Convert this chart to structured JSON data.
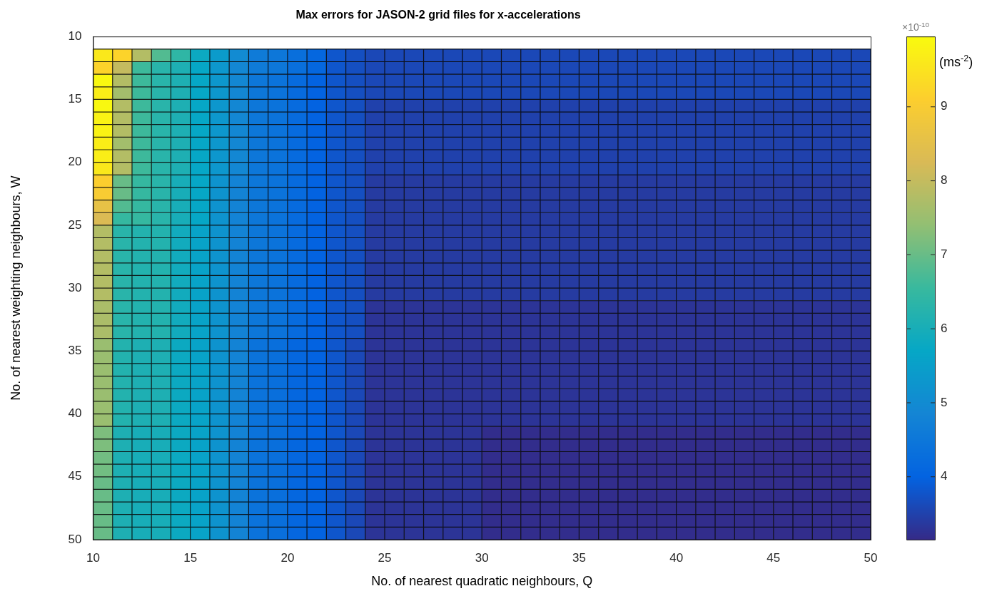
{
  "chart_data": {
    "type": "heatmap",
    "title": "Max errors for JASON-2 grid files for x-accelerations",
    "xlabel": "No. of nearest quadratic neighbours, Q",
    "ylabel": "No. of nearest weighting neighbours, W",
    "clabel": "(ms$^{-2}$)",
    "annotations": [
      "×10$^{-10}$"
    ],
    "x": [
      10.5,
      11.5,
      12.5,
      13.5,
      14.5,
      15.5,
      16.5,
      17.5,
      18.5,
      19.5,
      20.5,
      21.5,
      22.5,
      23.5,
      24.5,
      25.5,
      26.5,
      27.5,
      28.5,
      29.5,
      30.5,
      31.5,
      32.5,
      33.5,
      34.5,
      35.5,
      36.5,
      37.5,
      38.5,
      39.5,
      40.5,
      41.5,
      42.5,
      43.5,
      44.5,
      45.5,
      46.5,
      47.5,
      48.5,
      49.5
    ],
    "y": [
      11.5,
      12.5,
      13.5,
      14.5,
      15.5,
      16.5,
      17.5,
      18.5,
      19.5,
      20.5,
      21.5,
      22.5,
      23.5,
      24.5,
      25.5,
      26.5,
      27.5,
      28.5,
      29.5,
      30.5,
      31.5,
      32.5,
      33.5,
      34.5,
      35.5,
      36.5,
      37.5,
      38.5,
      39.5,
      40.5,
      41.5,
      42.5,
      43.5,
      44.5,
      45.5,
      46.5,
      47.5,
      48.5,
      49.5
    ],
    "grid": true,
    "xlim": [
      10,
      50
    ],
    "xticks": [
      10,
      15,
      20,
      25,
      30,
      35,
      40,
      45,
      50
    ],
    "ylim": [
      50,
      10
    ],
    "yticks": [
      10,
      15,
      20,
      25,
      30,
      35,
      40,
      45,
      50
    ],
    "clim": [
      3.15,
      9.95
    ],
    "cticks": [
      4,
      5,
      6,
      7,
      8,
      9
    ],
    "cells": [
      [
        9.6,
        9.2,
        7.8,
        6.8,
        6.4,
        5.8,
        5.4,
        5.0,
        4.6,
        4.5,
        4.3,
        4.1,
        3.8,
        3.7,
        3.6,
        3.6,
        3.6,
        3.6,
        3.6,
        3.6,
        3.6,
        3.6,
        3.6,
        3.6,
        3.6,
        3.6,
        3.6,
        3.6,
        3.6,
        3.6,
        3.6,
        3.6,
        3.6,
        3.6,
        3.6,
        3.6,
        3.6,
        3.6,
        3.6,
        3.6
      ],
      [
        9.2,
        8.0,
        6.6,
        6.3,
        6.1,
        5.7,
        5.3,
        4.9,
        4.6,
        4.5,
        4.3,
        4.1,
        3.8,
        3.7,
        3.6,
        3.6,
        3.6,
        3.6,
        3.6,
        3.6,
        3.6,
        3.6,
        3.6,
        3.6,
        3.6,
        3.6,
        3.6,
        3.6,
        3.6,
        3.6,
        3.6,
        3.6,
        3.6,
        3.6,
        3.6,
        3.6,
        3.6,
        3.6,
        3.6,
        3.6
      ],
      [
        9.9,
        7.8,
        6.6,
        6.3,
        6.1,
        5.7,
        5.3,
        4.9,
        4.5,
        4.4,
        4.2,
        4.0,
        3.8,
        3.7,
        3.6,
        3.6,
        3.6,
        3.6,
        3.6,
        3.6,
        3.6,
        3.6,
        3.6,
        3.6,
        3.6,
        3.6,
        3.6,
        3.6,
        3.6,
        3.6,
        3.6,
        3.6,
        3.6,
        3.6,
        3.6,
        3.6,
        3.6,
        3.6,
        3.6,
        3.6
      ],
      [
        9.7,
        7.6,
        6.6,
        6.3,
        6.1,
        5.7,
        5.3,
        4.9,
        4.5,
        4.4,
        4.2,
        4.0,
        3.8,
        3.7,
        3.6,
        3.6,
        3.6,
        3.6,
        3.6,
        3.6,
        3.6,
        3.6,
        3.6,
        3.6,
        3.6,
        3.6,
        3.6,
        3.6,
        3.6,
        3.6,
        3.6,
        3.6,
        3.6,
        3.6,
        3.6,
        3.6,
        3.6,
        3.6,
        3.6,
        3.6
      ],
      [
        9.9,
        7.8,
        6.6,
        6.3,
        6.1,
        5.7,
        5.3,
        4.9,
        4.5,
        4.4,
        4.2,
        4.0,
        3.8,
        3.7,
        3.5,
        3.5,
        3.5,
        3.5,
        3.5,
        3.5,
        3.5,
        3.5,
        3.5,
        3.5,
        3.5,
        3.5,
        3.5,
        3.5,
        3.5,
        3.5,
        3.5,
        3.5,
        3.5,
        3.5,
        3.5,
        3.5,
        3.5,
        3.5,
        3.5,
        3.5
      ],
      [
        9.8,
        7.8,
        6.6,
        6.3,
        6.1,
        5.7,
        5.3,
        4.9,
        4.5,
        4.4,
        4.2,
        4.0,
        3.8,
        3.7,
        3.5,
        3.5,
        3.5,
        3.5,
        3.5,
        3.5,
        3.5,
        3.5,
        3.5,
        3.5,
        3.5,
        3.5,
        3.5,
        3.5,
        3.5,
        3.5,
        3.5,
        3.5,
        3.5,
        3.5,
        3.5,
        3.5,
        3.5,
        3.5,
        3.5,
        3.5
      ],
      [
        9.8,
        7.8,
        6.6,
        6.3,
        6.1,
        5.7,
        5.3,
        4.9,
        4.5,
        4.4,
        4.2,
        4.0,
        3.8,
        3.7,
        3.5,
        3.5,
        3.5,
        3.5,
        3.5,
        3.5,
        3.5,
        3.5,
        3.5,
        3.5,
        3.5,
        3.5,
        3.5,
        3.5,
        3.5,
        3.5,
        3.5,
        3.5,
        3.5,
        3.5,
        3.5,
        3.5,
        3.5,
        3.5,
        3.5,
        3.5
      ],
      [
        9.7,
        7.6,
        6.6,
        6.3,
        6.1,
        5.7,
        5.3,
        4.9,
        4.5,
        4.4,
        4.2,
        4.0,
        3.8,
        3.7,
        3.5,
        3.5,
        3.5,
        3.5,
        3.5,
        3.5,
        3.5,
        3.5,
        3.5,
        3.5,
        3.5,
        3.5,
        3.5,
        3.5,
        3.5,
        3.5,
        3.5,
        3.5,
        3.5,
        3.5,
        3.5,
        3.5,
        3.5,
        3.5,
        3.5,
        3.5
      ],
      [
        9.7,
        7.8,
        6.6,
        6.3,
        6.1,
        5.7,
        5.3,
        4.9,
        4.5,
        4.4,
        4.2,
        4.0,
        3.8,
        3.7,
        3.5,
        3.5,
        3.5,
        3.5,
        3.5,
        3.5,
        3.5,
        3.5,
        3.5,
        3.5,
        3.5,
        3.5,
        3.5,
        3.5,
        3.5,
        3.5,
        3.5,
        3.5,
        3.5,
        3.5,
        3.5,
        3.5,
        3.5,
        3.5,
        3.5,
        3.5
      ],
      [
        9.6,
        7.8,
        6.6,
        6.3,
        6.1,
        5.7,
        5.3,
        4.9,
        4.5,
        4.4,
        4.2,
        4.0,
        3.8,
        3.7,
        3.5,
        3.5,
        3.5,
        3.5,
        3.5,
        3.5,
        3.5,
        3.5,
        3.5,
        3.5,
        3.5,
        3.5,
        3.5,
        3.5,
        3.5,
        3.5,
        3.5,
        3.5,
        3.5,
        3.5,
        3.5,
        3.5,
        3.5,
        3.5,
        3.5,
        3.5
      ],
      [
        9.1,
        7.0,
        6.5,
        6.3,
        6.0,
        5.7,
        5.2,
        4.8,
        4.5,
        4.4,
        4.2,
        4.0,
        3.8,
        3.7,
        3.4,
        3.4,
        3.4,
        3.4,
        3.4,
        3.4,
        3.4,
        3.4,
        3.4,
        3.4,
        3.4,
        3.4,
        3.4,
        3.4,
        3.4,
        3.4,
        3.4,
        3.4,
        3.4,
        3.4,
        3.4,
        3.4,
        3.4,
        3.4,
        3.4,
        3.4
      ],
      [
        9.0,
        7.0,
        6.5,
        6.3,
        6.0,
        5.7,
        5.2,
        4.8,
        4.5,
        4.4,
        4.2,
        4.0,
        3.8,
        3.7,
        3.4,
        3.4,
        3.4,
        3.4,
        3.4,
        3.4,
        3.4,
        3.4,
        3.4,
        3.4,
        3.4,
        3.4,
        3.4,
        3.4,
        3.4,
        3.4,
        3.4,
        3.4,
        3.4,
        3.4,
        3.4,
        3.4,
        3.4,
        3.4,
        3.4,
        3.4
      ],
      [
        8.6,
        6.8,
        6.5,
        6.3,
        6.0,
        5.7,
        5.2,
        4.8,
        4.5,
        4.4,
        4.2,
        4.0,
        3.8,
        3.7,
        3.4,
        3.4,
        3.4,
        3.4,
        3.4,
        3.4,
        3.4,
        3.4,
        3.4,
        3.4,
        3.4,
        3.4,
        3.4,
        3.4,
        3.4,
        3.4,
        3.4,
        3.4,
        3.4,
        3.4,
        3.4,
        3.4,
        3.4,
        3.4,
        3.4,
        3.4
      ],
      [
        8.3,
        6.5,
        6.5,
        6.3,
        6.0,
        5.7,
        5.2,
        4.8,
        4.5,
        4.4,
        4.2,
        4.0,
        3.8,
        3.7,
        3.4,
        3.4,
        3.4,
        3.4,
        3.4,
        3.4,
        3.4,
        3.4,
        3.4,
        3.4,
        3.4,
        3.4,
        3.4,
        3.4,
        3.4,
        3.4,
        3.4,
        3.4,
        3.4,
        3.4,
        3.4,
        3.4,
        3.4,
        3.4,
        3.4,
        3.4
      ],
      [
        7.8,
        6.3,
        6.2,
        6.2,
        5.9,
        5.6,
        5.2,
        4.8,
        4.5,
        4.4,
        4.2,
        4.0,
        3.8,
        3.7,
        3.4,
        3.4,
        3.4,
        3.4,
        3.4,
        3.4,
        3.4,
        3.4,
        3.4,
        3.4,
        3.4,
        3.4,
        3.4,
        3.4,
        3.4,
        3.4,
        3.4,
        3.4,
        3.4,
        3.4,
        3.4,
        3.4,
        3.4,
        3.4,
        3.4,
        3.4
      ],
      [
        7.8,
        6.3,
        6.2,
        6.2,
        5.9,
        5.6,
        5.2,
        4.8,
        4.5,
        4.4,
        4.2,
        4.0,
        3.8,
        3.7,
        3.4,
        3.4,
        3.4,
        3.4,
        3.4,
        3.4,
        3.4,
        3.4,
        3.4,
        3.4,
        3.4,
        3.4,
        3.4,
        3.4,
        3.4,
        3.4,
        3.4,
        3.4,
        3.4,
        3.4,
        3.4,
        3.4,
        3.4,
        3.4,
        3.4,
        3.4
      ],
      [
        7.8,
        6.3,
        6.2,
        6.2,
        5.9,
        5.6,
        5.2,
        4.8,
        4.5,
        4.4,
        4.2,
        4.0,
        3.8,
        3.7,
        3.4,
        3.4,
        3.4,
        3.4,
        3.4,
        3.4,
        3.4,
        3.4,
        3.4,
        3.4,
        3.4,
        3.4,
        3.4,
        3.4,
        3.4,
        3.4,
        3.4,
        3.4,
        3.4,
        3.4,
        3.4,
        3.4,
        3.4,
        3.4,
        3.4,
        3.4
      ],
      [
        7.8,
        6.3,
        6.2,
        6.2,
        5.9,
        5.6,
        5.2,
        4.8,
        4.5,
        4.4,
        4.2,
        4.0,
        3.8,
        3.7,
        3.4,
        3.4,
        3.4,
        3.4,
        3.4,
        3.4,
        3.4,
        3.4,
        3.4,
        3.4,
        3.4,
        3.4,
        3.4,
        3.4,
        3.4,
        3.4,
        3.4,
        3.4,
        3.4,
        3.4,
        3.4,
        3.4,
        3.4,
        3.4,
        3.4,
        3.4
      ],
      [
        7.8,
        6.3,
        6.2,
        6.2,
        5.9,
        5.6,
        5.2,
        4.8,
        4.5,
        4.4,
        4.2,
        4.0,
        3.8,
        3.7,
        3.4,
        3.4,
        3.4,
        3.4,
        3.4,
        3.4,
        3.4,
        3.4,
        3.4,
        3.4,
        3.4,
        3.4,
        3.4,
        3.4,
        3.4,
        3.4,
        3.4,
        3.4,
        3.4,
        3.4,
        3.4,
        3.4,
        3.4,
        3.4,
        3.4,
        3.4
      ],
      [
        7.8,
        6.3,
        6.2,
        6.2,
        5.9,
        5.6,
        5.2,
        4.8,
        4.5,
        4.4,
        4.2,
        4.0,
        3.8,
        3.7,
        3.4,
        3.4,
        3.4,
        3.4,
        3.4,
        3.4,
        3.4,
        3.4,
        3.4,
        3.4,
        3.4,
        3.4,
        3.4,
        3.4,
        3.4,
        3.4,
        3.4,
        3.4,
        3.4,
        3.4,
        3.4,
        3.4,
        3.4,
        3.4,
        3.4,
        3.4
      ],
      [
        7.7,
        6.3,
        6.2,
        6.2,
        5.9,
        5.6,
        5.2,
        4.8,
        4.5,
        4.4,
        4.2,
        4.0,
        3.8,
        3.7,
        3.3,
        3.3,
        3.3,
        3.3,
        3.3,
        3.3,
        3.3,
        3.3,
        3.3,
        3.3,
        3.3,
        3.3,
        3.3,
        3.3,
        3.3,
        3.3,
        3.3,
        3.3,
        3.3,
        3.3,
        3.3,
        3.3,
        3.3,
        3.3,
        3.3,
        3.3
      ],
      [
        7.7,
        6.3,
        6.2,
        6.2,
        5.9,
        5.6,
        5.2,
        4.8,
        4.5,
        4.4,
        4.2,
        4.0,
        3.8,
        3.7,
        3.3,
        3.3,
        3.3,
        3.3,
        3.3,
        3.3,
        3.3,
        3.3,
        3.3,
        3.3,
        3.3,
        3.3,
        3.3,
        3.3,
        3.3,
        3.3,
        3.3,
        3.3,
        3.3,
        3.3,
        3.3,
        3.3,
        3.3,
        3.3,
        3.3,
        3.3
      ],
      [
        7.7,
        6.3,
        6.2,
        6.2,
        5.9,
        5.6,
        5.2,
        4.8,
        4.5,
        4.4,
        4.2,
        4.0,
        3.8,
        3.7,
        3.3,
        3.3,
        3.3,
        3.3,
        3.3,
        3.3,
        3.3,
        3.3,
        3.3,
        3.3,
        3.3,
        3.3,
        3.3,
        3.3,
        3.3,
        3.3,
        3.3,
        3.3,
        3.3,
        3.3,
        3.3,
        3.3,
        3.3,
        3.3,
        3.3,
        3.3
      ],
      [
        7.5,
        6.2,
        6.1,
        6.1,
        5.8,
        5.6,
        5.2,
        4.8,
        4.4,
        4.3,
        4.1,
        4.0,
        3.8,
        3.6,
        3.3,
        3.3,
        3.3,
        3.3,
        3.3,
        3.3,
        3.3,
        3.3,
        3.3,
        3.3,
        3.3,
        3.3,
        3.3,
        3.3,
        3.3,
        3.3,
        3.3,
        3.3,
        3.3,
        3.3,
        3.3,
        3.3,
        3.3,
        3.3,
        3.3,
        3.3
      ],
      [
        7.5,
        6.2,
        6.1,
        6.1,
        5.8,
        5.6,
        5.2,
        4.8,
        4.4,
        4.3,
        4.1,
        4.0,
        3.8,
        3.6,
        3.3,
        3.3,
        3.3,
        3.3,
        3.3,
        3.3,
        3.3,
        3.3,
        3.3,
        3.3,
        3.3,
        3.3,
        3.3,
        3.3,
        3.3,
        3.3,
        3.3,
        3.3,
        3.3,
        3.3,
        3.3,
        3.3,
        3.3,
        3.3,
        3.3,
        3.3
      ],
      [
        7.5,
        6.2,
        6.1,
        6.1,
        5.8,
        5.6,
        5.2,
        4.8,
        4.4,
        4.3,
        4.1,
        4.0,
        3.8,
        3.6,
        3.3,
        3.3,
        3.3,
        3.3,
        3.3,
        3.3,
        3.3,
        3.3,
        3.3,
        3.3,
        3.3,
        3.3,
        3.3,
        3.3,
        3.3,
        3.3,
        3.3,
        3.3,
        3.3,
        3.3,
        3.3,
        3.3,
        3.3,
        3.3,
        3.3,
        3.3
      ],
      [
        7.5,
        6.2,
        6.1,
        6.1,
        5.8,
        5.6,
        5.2,
        4.8,
        4.4,
        4.3,
        4.1,
        4.0,
        3.8,
        3.6,
        3.3,
        3.3,
        3.3,
        3.3,
        3.3,
        3.3,
        3.3,
        3.3,
        3.3,
        3.3,
        3.3,
        3.3,
        3.3,
        3.3,
        3.3,
        3.3,
        3.3,
        3.3,
        3.3,
        3.3,
        3.3,
        3.3,
        3.3,
        3.3,
        3.3,
        3.3
      ],
      [
        7.5,
        6.2,
        6.1,
        6.1,
        5.8,
        5.6,
        5.2,
        4.8,
        4.4,
        4.3,
        4.1,
        4.0,
        3.8,
        3.6,
        3.3,
        3.3,
        3.3,
        3.3,
        3.3,
        3.3,
        3.3,
        3.3,
        3.3,
        3.3,
        3.3,
        3.3,
        3.3,
        3.3,
        3.3,
        3.3,
        3.3,
        3.3,
        3.3,
        3.3,
        3.3,
        3.3,
        3.3,
        3.3,
        3.3,
        3.3
      ],
      [
        7.5,
        6.2,
        6.1,
        6.1,
        5.8,
        5.6,
        5.2,
        4.8,
        4.4,
        4.3,
        4.1,
        4.0,
        3.8,
        3.6,
        3.3,
        3.3,
        3.3,
        3.3,
        3.3,
        3.3,
        3.3,
        3.3,
        3.3,
        3.3,
        3.3,
        3.3,
        3.3,
        3.3,
        3.3,
        3.3,
        3.3,
        3.3,
        3.3,
        3.3,
        3.3,
        3.3,
        3.3,
        3.3,
        3.3,
        3.3
      ],
      [
        7.5,
        6.2,
        6.1,
        6.1,
        5.8,
        5.6,
        5.2,
        4.8,
        4.4,
        4.3,
        4.1,
        4.0,
        3.8,
        3.6,
        3.3,
        3.3,
        3.3,
        3.3,
        3.3,
        3.3,
        3.3,
        3.3,
        3.3,
        3.3,
        3.3,
        3.3,
        3.3,
        3.3,
        3.3,
        3.3,
        3.3,
        3.3,
        3.3,
        3.3,
        3.3,
        3.3,
        3.3,
        3.3,
        3.3,
        3.3
      ],
      [
        7.2,
        6.1,
        6.0,
        6.0,
        5.8,
        5.6,
        5.2,
        4.8,
        4.4,
        4.3,
        4.1,
        4.0,
        3.8,
        3.6,
        3.3,
        3.3,
        3.3,
        3.3,
        3.3,
        3.3,
        3.2,
        3.2,
        3.2,
        3.2,
        3.2,
        3.2,
        3.2,
        3.2,
        3.2,
        3.2,
        3.2,
        3.2,
        3.2,
        3.2,
        3.2,
        3.2,
        3.2,
        3.2,
        3.2,
        3.2
      ],
      [
        7.2,
        6.1,
        6.0,
        6.0,
        5.8,
        5.6,
        5.2,
        4.8,
        4.4,
        4.3,
        4.1,
        4.0,
        3.8,
        3.6,
        3.3,
        3.3,
        3.3,
        3.3,
        3.3,
        3.3,
        3.2,
        3.2,
        3.2,
        3.2,
        3.2,
        3.2,
        3.2,
        3.2,
        3.2,
        3.2,
        3.2,
        3.2,
        3.2,
        3.2,
        3.2,
        3.2,
        3.2,
        3.2,
        3.2,
        3.2
      ],
      [
        7.1,
        6.1,
        6.0,
        6.0,
        5.8,
        5.6,
        5.2,
        4.8,
        4.4,
        4.3,
        4.1,
        4.0,
        3.8,
        3.6,
        3.3,
        3.3,
        3.3,
        3.3,
        3.3,
        3.3,
        3.2,
        3.2,
        3.2,
        3.2,
        3.2,
        3.2,
        3.2,
        3.2,
        3.2,
        3.2,
        3.2,
        3.2,
        3.2,
        3.2,
        3.2,
        3.2,
        3.2,
        3.2,
        3.2,
        3.2
      ],
      [
        7.1,
        6.1,
        6.0,
        6.0,
        5.8,
        5.6,
        5.2,
        4.8,
        4.4,
        4.3,
        4.1,
        4.0,
        3.8,
        3.6,
        3.3,
        3.3,
        3.3,
        3.3,
        3.3,
        3.3,
        3.2,
        3.2,
        3.2,
        3.2,
        3.2,
        3.2,
        3.2,
        3.2,
        3.2,
        3.2,
        3.2,
        3.2,
        3.2,
        3.2,
        3.2,
        3.2,
        3.2,
        3.2,
        3.2,
        3.2
      ],
      [
        7.0,
        6.1,
        6.0,
        6.0,
        5.8,
        5.6,
        5.2,
        4.8,
        4.4,
        4.3,
        4.1,
        4.0,
        3.8,
        3.6,
        3.3,
        3.3,
        3.3,
        3.3,
        3.3,
        3.3,
        3.2,
        3.2,
        3.2,
        3.2,
        3.2,
        3.2,
        3.2,
        3.2,
        3.2,
        3.2,
        3.2,
        3.2,
        3.2,
        3.2,
        3.2,
        3.2,
        3.2,
        3.2,
        3.2,
        3.2
      ],
      [
        7.0,
        6.1,
        6.0,
        6.0,
        5.8,
        5.6,
        5.2,
        4.8,
        4.4,
        4.3,
        4.1,
        4.0,
        3.8,
        3.6,
        3.3,
        3.3,
        3.3,
        3.3,
        3.3,
        3.3,
        3.2,
        3.2,
        3.2,
        3.2,
        3.2,
        3.2,
        3.2,
        3.2,
        3.2,
        3.2,
        3.2,
        3.2,
        3.2,
        3.2,
        3.2,
        3.2,
        3.2,
        3.2,
        3.2,
        3.2
      ],
      [
        7.0,
        6.1,
        6.0,
        6.0,
        5.8,
        5.6,
        5.2,
        4.8,
        4.4,
        4.3,
        4.1,
        4.0,
        3.8,
        3.6,
        3.3,
        3.3,
        3.3,
        3.3,
        3.3,
        3.3,
        3.2,
        3.2,
        3.2,
        3.2,
        3.2,
        3.2,
        3.2,
        3.2,
        3.2,
        3.2,
        3.2,
        3.2,
        3.2,
        3.2,
        3.2,
        3.2,
        3.2,
        3.2,
        3.2,
        3.2
      ],
      [
        7.0,
        6.1,
        6.0,
        6.0,
        5.8,
        5.6,
        5.2,
        4.8,
        4.4,
        4.3,
        4.1,
        4.0,
        3.8,
        3.6,
        3.3,
        3.3,
        3.3,
        3.3,
        3.3,
        3.3,
        3.2,
        3.2,
        3.2,
        3.2,
        3.2,
        3.2,
        3.2,
        3.2,
        3.2,
        3.2,
        3.2,
        3.2,
        3.2,
        3.2,
        3.2,
        3.2,
        3.2,
        3.2,
        3.2,
        3.2
      ],
      [
        7.0,
        6.1,
        6.0,
        6.0,
        5.8,
        5.6,
        5.2,
        4.8,
        4.4,
        4.3,
        4.1,
        4.0,
        3.8,
        3.6,
        3.3,
        3.3,
        3.3,
        3.3,
        3.3,
        3.3,
        3.2,
        3.2,
        3.2,
        3.2,
        3.2,
        3.2,
        3.2,
        3.2,
        3.2,
        3.2,
        3.2,
        3.2,
        3.2,
        3.2,
        3.2,
        3.2,
        3.2,
        3.2,
        3.2,
        3.2
      ]
    ]
  }
}
